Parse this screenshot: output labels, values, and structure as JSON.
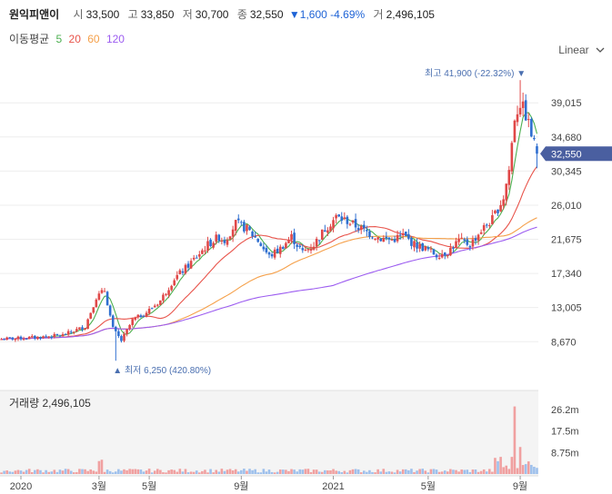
{
  "header": {
    "stock_name": "원익피앤이",
    "open_label": "시",
    "open": "33,500",
    "high_label": "고",
    "high": "33,850",
    "low_label": "저",
    "low": "30,700",
    "close_label": "종",
    "close": "32,550",
    "change": "▼1,600 -4.69%",
    "volume_label": "거",
    "volume": "2,496,105"
  },
  "moving_avg": {
    "label": "이동평균",
    "periods": [
      "5",
      "20",
      "60",
      "120"
    ],
    "colors": [
      "#4caf50",
      "#e8534a",
      "#f5a04a",
      "#9c5cf0"
    ]
  },
  "scale_selector": {
    "value": "Linear",
    "icon": "chevron-down-icon"
  },
  "colors": {
    "up": "#e04848",
    "down": "#2f6fd0",
    "up_volume": "#f0a0a0",
    "down_volume": "#9ec0ec",
    "accent": "#4a5fa0"
  },
  "chart_data": {
    "type": "candlestick",
    "price_axis": {
      "ticks": [
        "39,015",
        "34,680",
        "30,345",
        "26,010",
        "21,675",
        "17,340",
        "13,005",
        "8,670"
      ],
      "range": [
        4200,
        44000
      ]
    },
    "x_ticks": [
      "2020",
      "3월",
      "5월",
      "9월",
      "2021",
      "5월",
      "9월"
    ],
    "current_price_label": "32,550",
    "high_annotation": "최고 41,900 (-22.32%) ▼",
    "low_annotation": "▲ 최저 6,250 (420.80%)",
    "volume_panel": {
      "label": "거래량",
      "value": "2,496,105",
      "ticks": [
        "26.2m",
        "17.5m",
        "8.75m"
      ]
    },
    "close_profile": [
      [
        0,
        9000
      ],
      [
        12,
        9200
      ],
      [
        22,
        9500
      ],
      [
        30,
        10600
      ],
      [
        34,
        14300
      ],
      [
        37,
        15200
      ],
      [
        40,
        10300
      ],
      [
        43,
        8800
      ],
      [
        47,
        11400
      ],
      [
        52,
        12400
      ],
      [
        57,
        13900
      ],
      [
        62,
        16700
      ],
      [
        66,
        18000
      ],
      [
        70,
        19500
      ],
      [
        74,
        21000
      ],
      [
        78,
        22000
      ],
      [
        80,
        21500
      ],
      [
        84,
        23700
      ],
      [
        88,
        23000
      ],
      [
        92,
        21500
      ],
      [
        96,
        19500
      ],
      [
        100,
        20500
      ],
      [
        104,
        22000
      ],
      [
        108,
        20000
      ],
      [
        112,
        21000
      ],
      [
        116,
        23000
      ],
      [
        120,
        24500
      ],
      [
        124,
        24000
      ],
      [
        128,
        23200
      ],
      [
        132,
        22400
      ],
      [
        136,
        21800
      ],
      [
        140,
        21600
      ],
      [
        144,
        22200
      ],
      [
        148,
        21000
      ],
      [
        152,
        20500
      ],
      [
        156,
        19700
      ],
      [
        160,
        20100
      ],
      [
        164,
        21500
      ],
      [
        168,
        21000
      ],
      [
        172,
        22800
      ],
      [
        176,
        24200
      ],
      [
        180,
        27000
      ],
      [
        182,
        30500
      ],
      [
        184,
        37200
      ],
      [
        186,
        39000
      ],
      [
        188,
        37500
      ],
      [
        190,
        35000
      ],
      [
        192,
        32550
      ]
    ],
    "series": [
      {
        "name": "5",
        "values": []
      },
      {
        "name": "20",
        "values": []
      },
      {
        "name": "60",
        "values": []
      },
      {
        "name": "120",
        "values": []
      }
    ]
  }
}
